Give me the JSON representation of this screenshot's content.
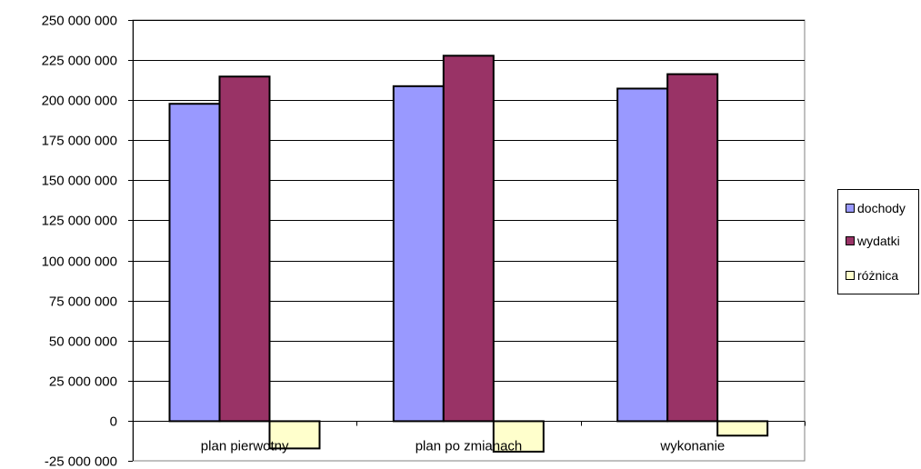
{
  "chart_data": {
    "type": "bar",
    "categories": [
      "plan pierwotny",
      "plan po zmianach",
      "wykonanie"
    ],
    "series": [
      {
        "name": "dochody",
        "color": "#9999ff",
        "values": [
          198000000,
          209000000,
          207500000
        ]
      },
      {
        "name": "wydatki",
        "color": "#993366",
        "values": [
          215000000,
          228000000,
          216500000
        ]
      },
      {
        "name": "różnica",
        "color": "#ffffcc",
        "values": [
          -17000000,
          -19000000,
          -9000000
        ]
      }
    ],
    "y_ticks": [
      "250 000 000",
      "225 000 000",
      "200 000 000",
      "175 000 000",
      "150 000 000",
      "125 000 000",
      "100 000 000",
      "75 000 000",
      "50 000 000",
      "25 000 000",
      "0",
      "-25 000 000"
    ],
    "ylim": [
      -25000000,
      250000000
    ],
    "grid": true,
    "legend_position": "right"
  },
  "legend": {
    "items": [
      {
        "label": "dochody",
        "color": "#9999ff"
      },
      {
        "label": "wydatki",
        "color": "#993366"
      },
      {
        "label": "różnica",
        "color": "#ffffcc"
      }
    ]
  }
}
